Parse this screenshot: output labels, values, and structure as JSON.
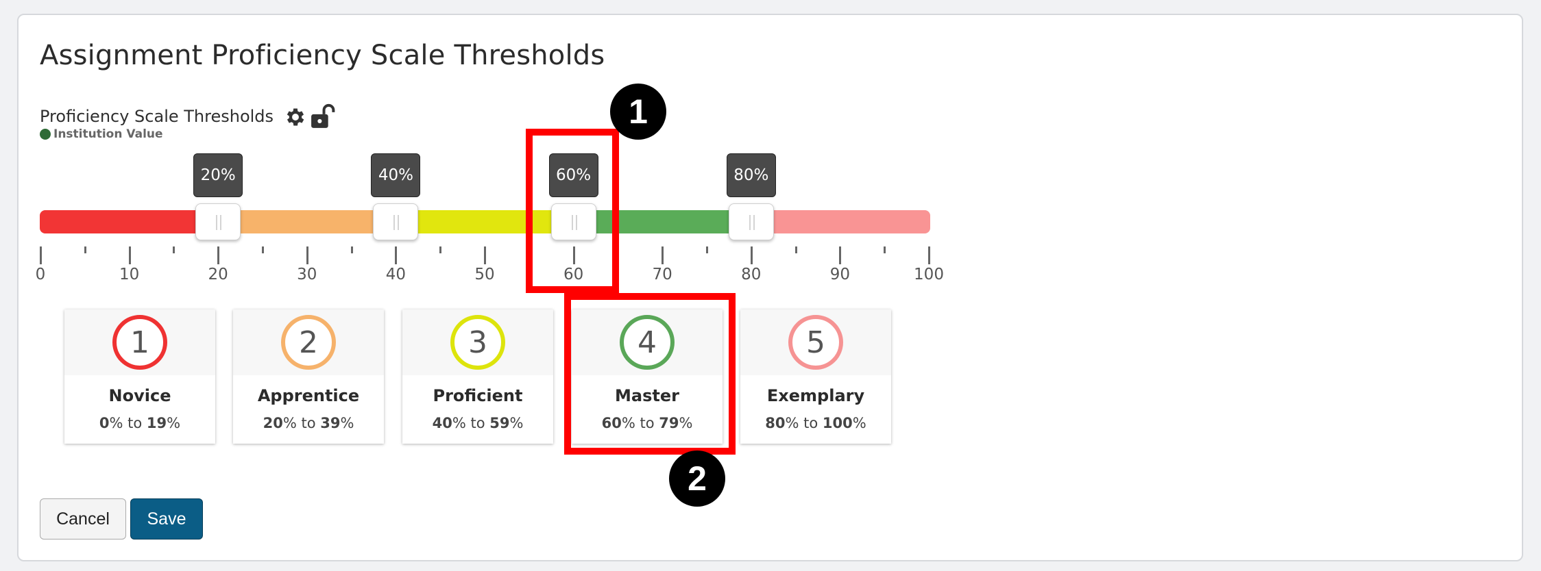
{
  "page": {
    "title": "Assignment Proficiency Scale Thresholds"
  },
  "thresholds": {
    "label": "Proficiency Scale Thresholds",
    "source": "Institution Value",
    "settings_icon": "gear-icon",
    "lock_icon": "unlocked-padlock-icon"
  },
  "slider": {
    "min": 0,
    "max": 100,
    "values": [
      20,
      40,
      60,
      80
    ],
    "tooltips": [
      "20%",
      "40%",
      "60%",
      "80%"
    ],
    "major_ticks": [
      "0",
      "10",
      "20",
      "30",
      "40",
      "50",
      "60",
      "70",
      "80",
      "90",
      "100"
    ],
    "segment_colors": [
      "#f23535",
      "#f7b36a",
      "#e1e60e",
      "#5aac58",
      "#f99494"
    ]
  },
  "levels": [
    {
      "number": "1",
      "name": "Novice",
      "from": "0",
      "to": "19",
      "color": "#ef3232"
    },
    {
      "number": "2",
      "name": "Apprentice",
      "from": "20",
      "to": "39",
      "color": "#f6b26b"
    },
    {
      "number": "3",
      "name": "Proficient",
      "from": "40",
      "to": "59",
      "color": "#dde40c"
    },
    {
      "number": "4",
      "name": "Master",
      "from": "60",
      "to": "79",
      "color": "#5aa758"
    },
    {
      "number": "5",
      "name": "Exemplary",
      "from": "80",
      "to": "100",
      "color": "#f69393"
    }
  ],
  "range_words": {
    "pct": "%",
    "to": " to "
  },
  "callouts": {
    "first": "1",
    "second": "2",
    "color": "#ff0000"
  },
  "buttons": {
    "cancel": "Cancel",
    "save": "Save"
  }
}
